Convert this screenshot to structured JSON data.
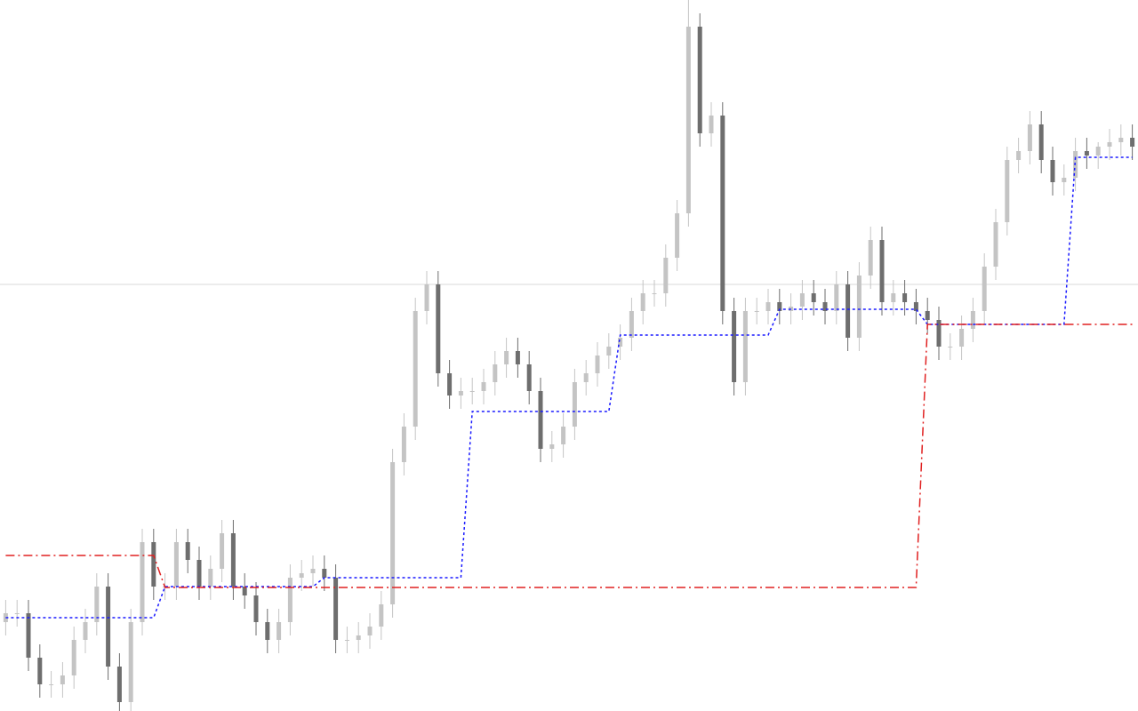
{
  "chart_data": {
    "type": "candlestick",
    "ylim": [
      0,
      800
    ],
    "up_color": "#c4c4c4",
    "down_color": "#6e6e6e",
    "hline": {
      "value": 480,
      "color": "#d8d8d8"
    },
    "open": [
      100,
      110,
      110,
      60,
      30,
      30,
      40,
      80,
      100,
      140,
      50,
      10,
      100,
      190,
      140,
      140,
      190,
      170,
      140,
      160,
      200,
      140,
      130,
      100,
      80,
      100,
      150,
      155,
      160,
      150,
      80,
      80,
      85,
      95,
      120,
      280,
      320,
      450,
      480,
      380,
      355,
      360,
      360,
      370,
      390,
      405,
      390,
      360,
      295,
      300,
      320,
      370,
      380,
      400,
      410,
      420,
      450,
      470,
      470,
      510,
      560,
      770,
      650,
      670,
      450,
      370,
      450,
      450,
      460,
      450,
      455,
      470,
      460,
      450,
      480,
      420,
      490,
      530,
      460,
      470,
      460,
      450,
      440,
      410,
      410,
      430,
      450,
      500,
      550,
      620,
      630,
      660,
      620,
      595,
      600,
      630,
      625,
      635,
      640,
      645
    ],
    "high": [
      125,
      125,
      125,
      75,
      45,
      55,
      95,
      115,
      155,
      155,
      65,
      115,
      205,
      205,
      155,
      205,
      205,
      185,
      175,
      215,
      215,
      155,
      145,
      115,
      115,
      165,
      170,
      175,
      175,
      165,
      95,
      100,
      110,
      135,
      295,
      335,
      465,
      495,
      495,
      395,
      375,
      375,
      385,
      405,
      420,
      420,
      405,
      375,
      315,
      335,
      385,
      395,
      415,
      425,
      435,
      465,
      485,
      485,
      525,
      575,
      800,
      785,
      685,
      685,
      465,
      465,
      465,
      475,
      475,
      470,
      485,
      485,
      475,
      495,
      495,
      505,
      545,
      545,
      485,
      485,
      475,
      465,
      455,
      425,
      445,
      465,
      515,
      565,
      635,
      645,
      675,
      675,
      635,
      615,
      645,
      645,
      640,
      655,
      660,
      660
    ],
    "low": [
      85,
      95,
      45,
      15,
      15,
      15,
      25,
      65,
      85,
      35,
      0,
      0,
      85,
      125,
      125,
      125,
      155,
      125,
      125,
      145,
      125,
      115,
      85,
      65,
      65,
      85,
      135,
      140,
      135,
      65,
      65,
      65,
      70,
      80,
      105,
      265,
      305,
      435,
      365,
      340,
      340,
      345,
      345,
      355,
      375,
      375,
      345,
      280,
      280,
      285,
      305,
      355,
      365,
      385,
      395,
      405,
      435,
      455,
      455,
      495,
      545,
      635,
      635,
      435,
      355,
      355,
      435,
      435,
      435,
      435,
      440,
      445,
      435,
      435,
      405,
      405,
      475,
      445,
      445,
      445,
      435,
      425,
      395,
      395,
      395,
      415,
      435,
      485,
      535,
      605,
      615,
      605,
      580,
      580,
      585,
      610,
      610,
      620,
      625,
      620
    ],
    "close": [
      110,
      110,
      60,
      30,
      30,
      40,
      80,
      100,
      140,
      50,
      10,
      100,
      190,
      140,
      140,
      190,
      170,
      140,
      160,
      200,
      140,
      130,
      100,
      80,
      100,
      150,
      155,
      160,
      150,
      80,
      80,
      85,
      95,
      120,
      280,
      320,
      450,
      480,
      380,
      355,
      360,
      360,
      370,
      390,
      405,
      390,
      360,
      295,
      300,
      320,
      370,
      380,
      400,
      410,
      420,
      450,
      470,
      470,
      510,
      560,
      770,
      650,
      670,
      450,
      370,
      450,
      450,
      460,
      450,
      455,
      470,
      460,
      450,
      480,
      420,
      490,
      530,
      460,
      470,
      460,
      450,
      440,
      410,
      410,
      430,
      450,
      500,
      550,
      620,
      630,
      660,
      620,
      595,
      600,
      630,
      625,
      635,
      640,
      645,
      635
    ],
    "lines": [
      {
        "color": "#1a1aff",
        "dash": "3,3",
        "values": [
          105,
          105,
          105,
          105,
          105,
          105,
          105,
          105,
          105,
          105,
          105,
          105,
          105,
          105,
          140,
          140,
          140,
          140,
          140,
          140,
          140,
          140,
          140,
          140,
          140,
          140,
          140,
          140,
          150,
          150,
          150,
          150,
          150,
          150,
          150,
          150,
          150,
          150,
          150,
          150,
          150,
          337,
          337,
          337,
          337,
          337,
          337,
          337,
          337,
          337,
          337,
          337,
          337,
          337,
          423,
          423,
          423,
          423,
          423,
          423,
          423,
          423,
          423,
          423,
          423,
          423,
          423,
          423,
          452,
          452,
          452,
          452,
          452,
          452,
          452,
          452,
          452,
          452,
          452,
          452,
          452,
          435,
          435,
          435,
          435,
          435,
          435,
          435,
          435,
          435,
          435,
          435,
          435,
          435,
          623,
          623,
          623,
          623,
          623,
          623
        ]
      },
      {
        "color": "#e02020",
        "dash": "10,4,2,4",
        "values": [
          175,
          175,
          175,
          175,
          175,
          175,
          175,
          175,
          175,
          175,
          175,
          175,
          175,
          175,
          139,
          139,
          139,
          139,
          139,
          139,
          139,
          139,
          139,
          139,
          139,
          139,
          139,
          139,
          139,
          139,
          139,
          139,
          139,
          139,
          139,
          139,
          139,
          139,
          139,
          139,
          139,
          139,
          139,
          139,
          139,
          139,
          139,
          139,
          139,
          139,
          139,
          139,
          139,
          139,
          139,
          139,
          139,
          139,
          139,
          139,
          139,
          139,
          139,
          139,
          139,
          139,
          139,
          139,
          139,
          139,
          139,
          139,
          139,
          139,
          139,
          139,
          139,
          139,
          139,
          139,
          139,
          435,
          435,
          435,
          435,
          435,
          435,
          435,
          435,
          435,
          435,
          435,
          435,
          435,
          435,
          435,
          435,
          435,
          435,
          435
        ]
      }
    ]
  }
}
